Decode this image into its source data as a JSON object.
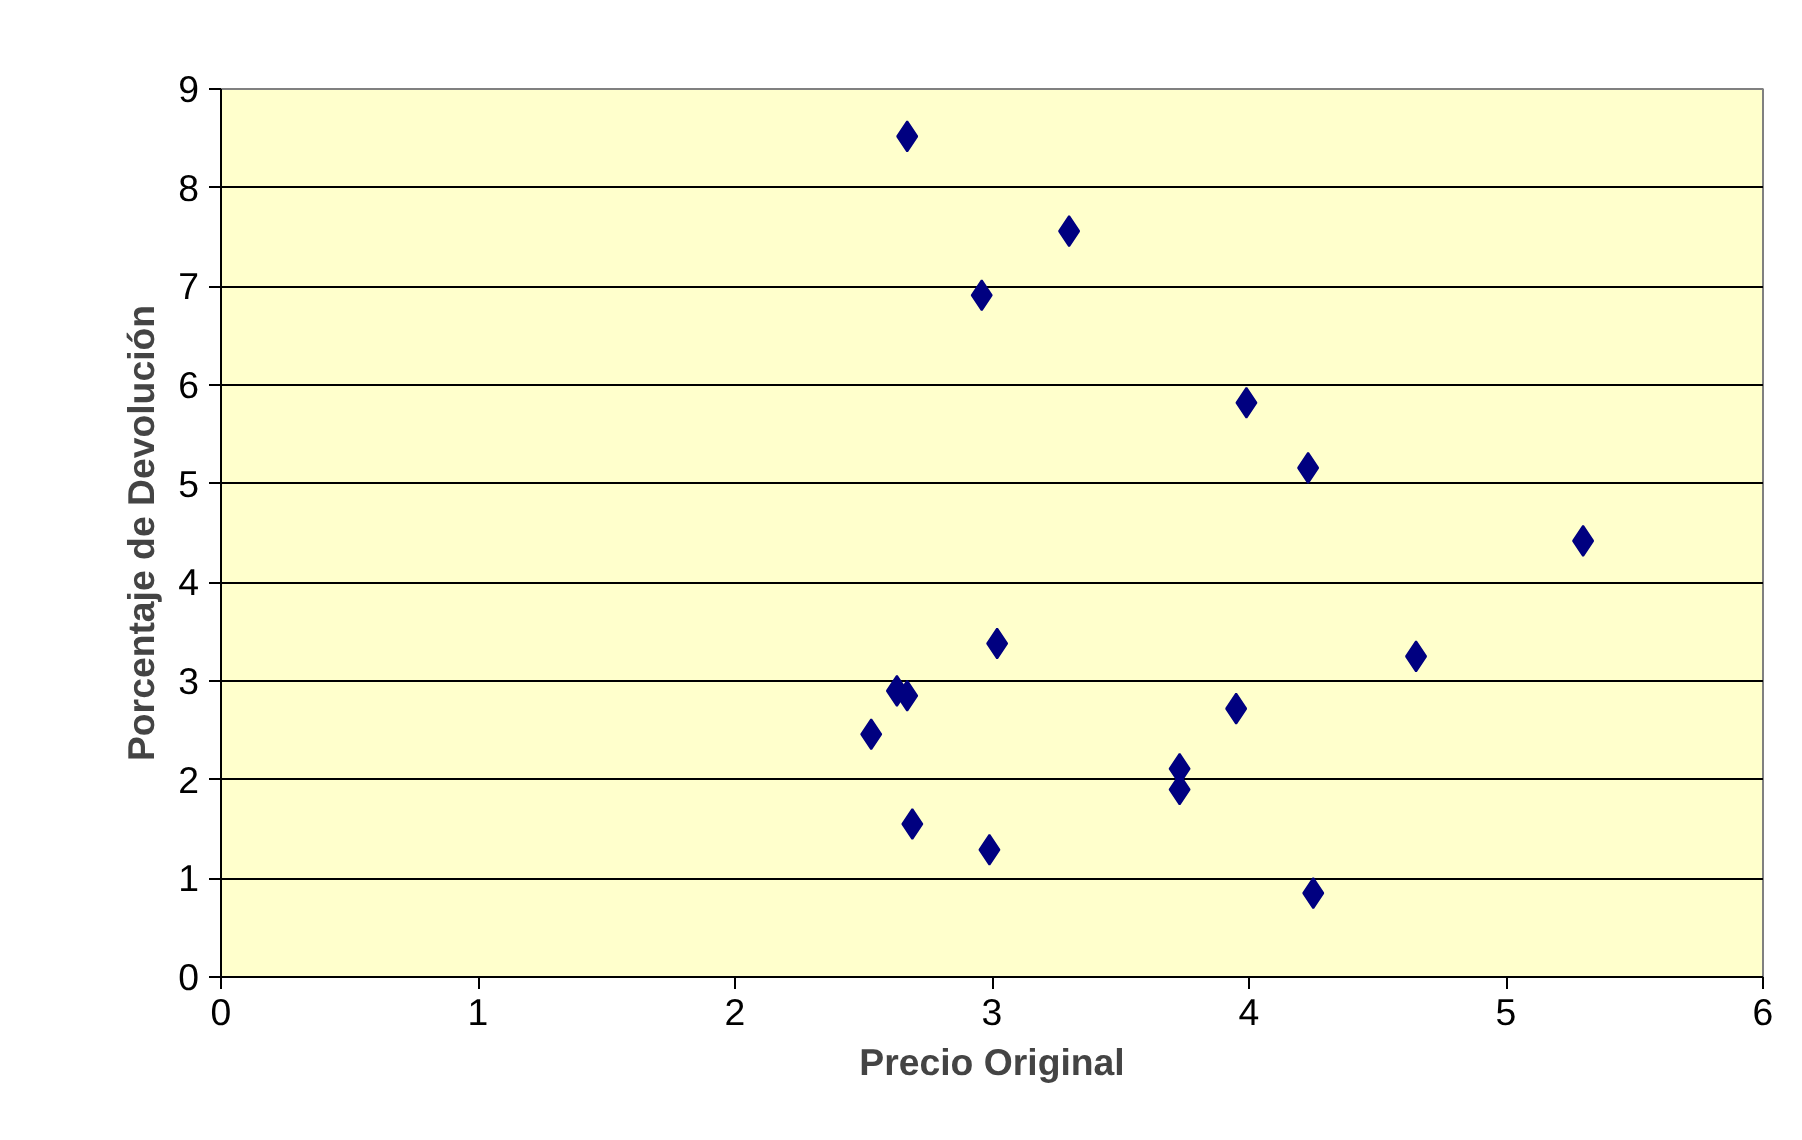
{
  "chart_data": {
    "type": "scatter",
    "xlabel": "Precio Original",
    "ylabel": "Porcentaje de Devolución",
    "x": [
      2.67,
      3.3,
      2.96,
      3.99,
      4.23,
      5.3,
      3.02,
      4.65,
      2.63,
      2.67,
      3.95,
      2.53,
      3.73,
      3.73,
      2.69,
      2.99,
      4.25
    ],
    "values": [
      8.52,
      7.56,
      6.91,
      5.82,
      5.16,
      4.42,
      3.38,
      3.25,
      2.9,
      2.85,
      2.72,
      2.46,
      2.11,
      1.9,
      1.55,
      1.29,
      0.85
    ],
    "color": "#000080",
    "marker": "diamond",
    "grid": "y",
    "xlim": [
      0,
      6
    ],
    "xticks": [
      0,
      1,
      2,
      3,
      4,
      5,
      6
    ],
    "ylim": [
      0,
      9
    ],
    "yticks": [
      0,
      1,
      2,
      3,
      4,
      5,
      6,
      7,
      8,
      9
    ]
  }
}
